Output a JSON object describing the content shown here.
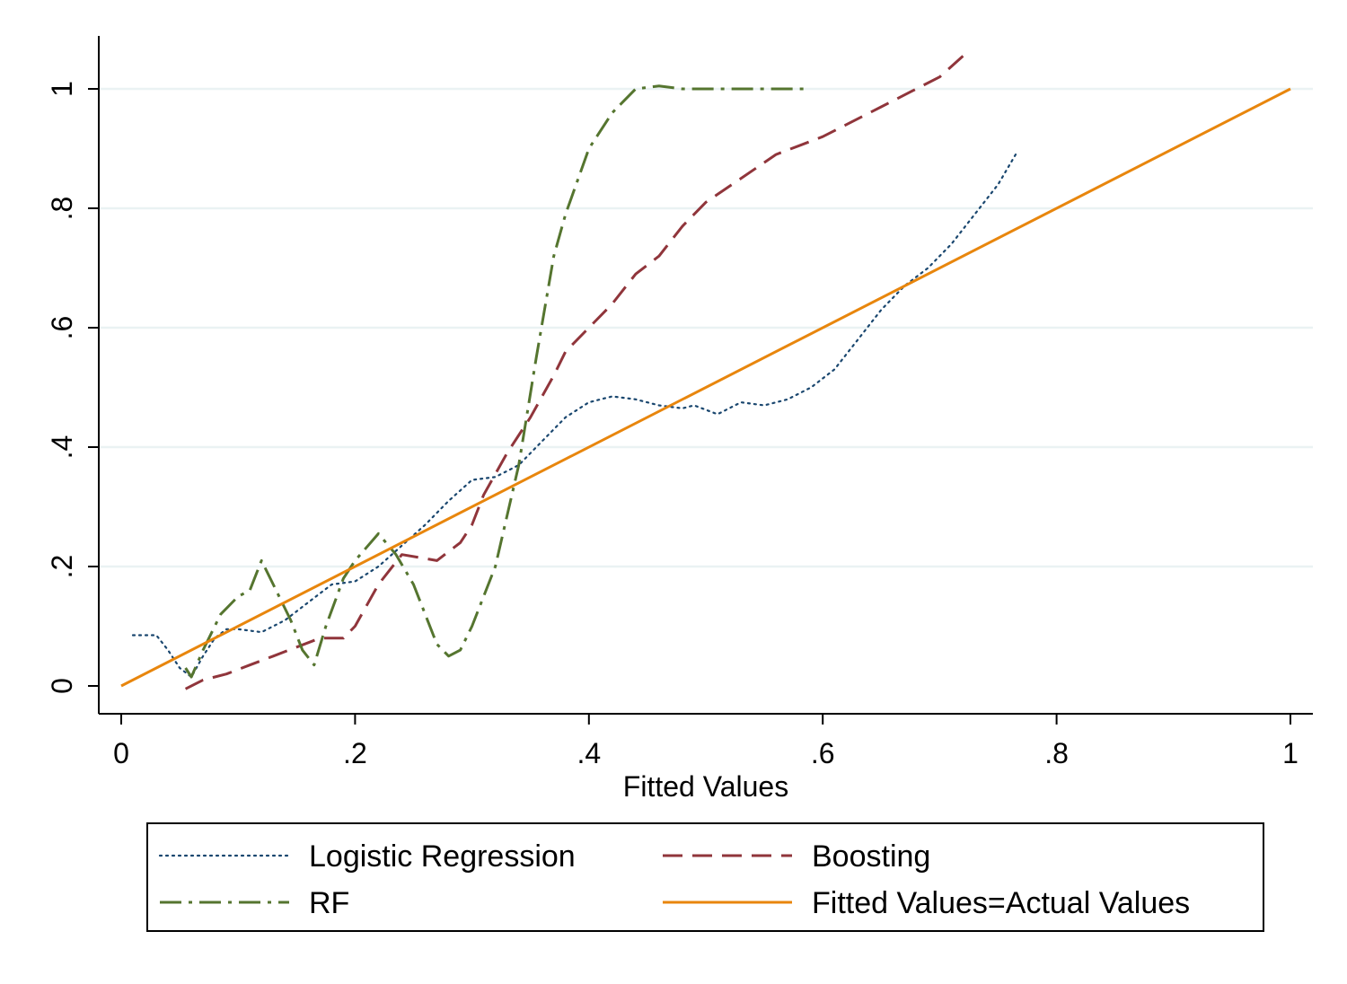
{
  "chart_data": {
    "type": "line",
    "title": "",
    "xlabel": "Fitted Values",
    "ylabel": "",
    "xlim": [
      0,
      1
    ],
    "ylim": [
      0,
      1
    ],
    "grid": "horizontal",
    "legend_position": "bottom",
    "x_ticks": [
      {
        "value": 0,
        "label": "0"
      },
      {
        "value": 0.2,
        "label": ".2"
      },
      {
        "value": 0.4,
        "label": ".4"
      },
      {
        "value": 0.6,
        "label": ".6"
      },
      {
        "value": 0.8,
        "label": ".8"
      },
      {
        "value": 1,
        "label": "1"
      }
    ],
    "y_ticks": [
      {
        "value": 0,
        "label": "0"
      },
      {
        "value": 0.2,
        "label": ".2"
      },
      {
        "value": 0.4,
        "label": ".4"
      },
      {
        "value": 0.6,
        "label": ".6"
      },
      {
        "value": 0.8,
        "label": ".8"
      },
      {
        "value": 1,
        "label": "1"
      }
    ],
    "series": [
      {
        "name": "Logistic Regression",
        "color": "#1a476f",
        "style": "dotted",
        "points": [
          [
            0.01,
            0.085
          ],
          [
            0.02,
            0.085
          ],
          [
            0.03,
            0.085
          ],
          [
            0.04,
            0.06
          ],
          [
            0.05,
            0.03
          ],
          [
            0.06,
            0.015
          ],
          [
            0.07,
            0.05
          ],
          [
            0.08,
            0.08
          ],
          [
            0.09,
            0.095
          ],
          [
            0.1,
            0.095
          ],
          [
            0.12,
            0.09
          ],
          [
            0.14,
            0.11
          ],
          [
            0.16,
            0.14
          ],
          [
            0.18,
            0.17
          ],
          [
            0.2,
            0.175
          ],
          [
            0.22,
            0.2
          ],
          [
            0.24,
            0.235
          ],
          [
            0.26,
            0.27
          ],
          [
            0.28,
            0.31
          ],
          [
            0.3,
            0.345
          ],
          [
            0.32,
            0.35
          ],
          [
            0.34,
            0.37
          ],
          [
            0.36,
            0.41
          ],
          [
            0.38,
            0.45
          ],
          [
            0.4,
            0.475
          ],
          [
            0.42,
            0.485
          ],
          [
            0.44,
            0.48
          ],
          [
            0.46,
            0.47
          ],
          [
            0.48,
            0.465
          ],
          [
            0.49,
            0.47
          ],
          [
            0.51,
            0.455
          ],
          [
            0.53,
            0.475
          ],
          [
            0.55,
            0.47
          ],
          [
            0.57,
            0.48
          ],
          [
            0.59,
            0.5
          ],
          [
            0.61,
            0.53
          ],
          [
            0.63,
            0.58
          ],
          [
            0.65,
            0.63
          ],
          [
            0.67,
            0.67
          ],
          [
            0.69,
            0.7
          ],
          [
            0.71,
            0.74
          ],
          [
            0.73,
            0.79
          ],
          [
            0.75,
            0.84
          ],
          [
            0.765,
            0.89
          ]
        ]
      },
      {
        "name": "Boosting",
        "color": "#90353b",
        "style": "dashed",
        "points": [
          [
            0.055,
            -0.005
          ],
          [
            0.07,
            0.01
          ],
          [
            0.09,
            0.02
          ],
          [
            0.11,
            0.035
          ],
          [
            0.13,
            0.05
          ],
          [
            0.15,
            0.065
          ],
          [
            0.17,
            0.08
          ],
          [
            0.19,
            0.08
          ],
          [
            0.2,
            0.1
          ],
          [
            0.22,
            0.17
          ],
          [
            0.24,
            0.22
          ],
          [
            0.255,
            0.215
          ],
          [
            0.27,
            0.21
          ],
          [
            0.29,
            0.24
          ],
          [
            0.3,
            0.27
          ],
          [
            0.31,
            0.32
          ],
          [
            0.33,
            0.39
          ],
          [
            0.35,
            0.45
          ],
          [
            0.37,
            0.52
          ],
          [
            0.38,
            0.56
          ],
          [
            0.4,
            0.6
          ],
          [
            0.42,
            0.64
          ],
          [
            0.44,
            0.69
          ],
          [
            0.46,
            0.72
          ],
          [
            0.48,
            0.77
          ],
          [
            0.5,
            0.81
          ],
          [
            0.53,
            0.85
          ],
          [
            0.56,
            0.89
          ],
          [
            0.6,
            0.92
          ],
          [
            0.65,
            0.97
          ],
          [
            0.7,
            1.02
          ],
          [
            0.72,
            1.055
          ]
        ]
      },
      {
        "name": "RF",
        "color": "#55752f",
        "style": "dashdot",
        "points": [
          [
            0.055,
            0.03
          ],
          [
            0.06,
            0.015
          ],
          [
            0.07,
            0.06
          ],
          [
            0.085,
            0.12
          ],
          [
            0.1,
            0.15
          ],
          [
            0.11,
            0.16
          ],
          [
            0.12,
            0.21
          ],
          [
            0.13,
            0.17
          ],
          [
            0.145,
            0.11
          ],
          [
            0.155,
            0.06
          ],
          [
            0.165,
            0.035
          ],
          [
            0.175,
            0.1
          ],
          [
            0.19,
            0.18
          ],
          [
            0.2,
            0.21
          ],
          [
            0.22,
            0.255
          ],
          [
            0.235,
            0.22
          ],
          [
            0.25,
            0.17
          ],
          [
            0.26,
            0.12
          ],
          [
            0.27,
            0.07
          ],
          [
            0.28,
            0.05
          ],
          [
            0.29,
            0.06
          ],
          [
            0.3,
            0.1
          ],
          [
            0.32,
            0.2
          ],
          [
            0.34,
            0.37
          ],
          [
            0.355,
            0.55
          ],
          [
            0.37,
            0.72
          ],
          [
            0.38,
            0.79
          ],
          [
            0.4,
            0.9
          ],
          [
            0.42,
            0.96
          ],
          [
            0.44,
            1.0
          ],
          [
            0.46,
            1.005
          ],
          [
            0.48,
            1.0
          ],
          [
            0.52,
            1.0
          ],
          [
            0.56,
            1.0
          ],
          [
            0.585,
            1.0
          ]
        ]
      },
      {
        "name": "Fitted Values=Actual Values",
        "color": "#e8860d",
        "style": "solid",
        "points": [
          [
            0,
            0
          ],
          [
            1,
            1
          ]
        ]
      }
    ]
  }
}
